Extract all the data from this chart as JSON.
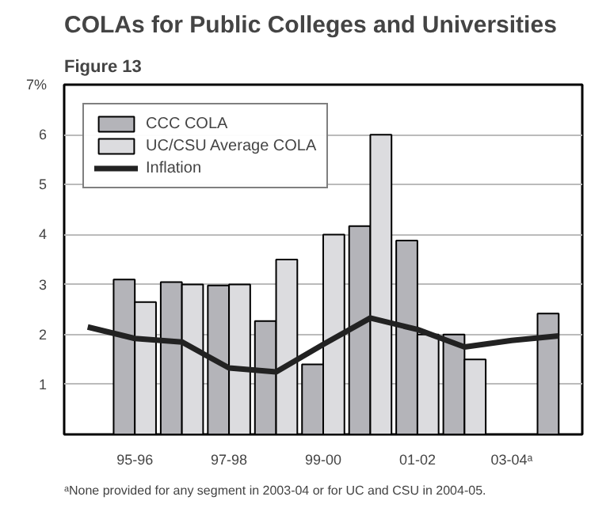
{
  "chart_data": {
    "type": "bar",
    "subtitle": "Figure 13",
    "title": "COLAs for Public Colleges and Universities",
    "categories": [
      null,
      "95-96",
      null,
      "97-98",
      null,
      "99-00",
      null,
      "01-02",
      null,
      "03-04ᵃ",
      null
    ],
    "series": [
      {
        "name": "CCC COLA",
        "color": "#b4b4b9",
        "values": [
          null,
          3.1,
          3.05,
          2.98,
          2.27,
          1.4,
          4.17,
          3.88,
          2.0,
          null,
          2.42
        ]
      },
      {
        "name": "UC/CSU Average COLA",
        "color": "#dcdcdf",
        "values": [
          null,
          2.65,
          3.0,
          3.0,
          3.5,
          4.0,
          6.0,
          2.0,
          1.5,
          null,
          null
        ]
      },
      {
        "name": "Inflation",
        "type": "line",
        "color": "#222222",
        "values": [
          2.15,
          1.92,
          1.85,
          1.33,
          1.25,
          1.8,
          2.33,
          2.1,
          1.75,
          1.88,
          1.97
        ]
      }
    ],
    "ylim": [
      0,
      7
    ],
    "yticks": [
      {
        "value": 0,
        "label": null
      },
      1,
      2,
      3,
      4,
      5,
      6,
      {
        "value": 7,
        "label": "7%"
      }
    ],
    "grid": "y",
    "legend": "top left",
    "marker": "none",
    "line_style": "solid",
    "annotations": [
      "ᵃNone provided for any segment in 2003-04 or for UC and CSU in 2004-05."
    ]
  }
}
